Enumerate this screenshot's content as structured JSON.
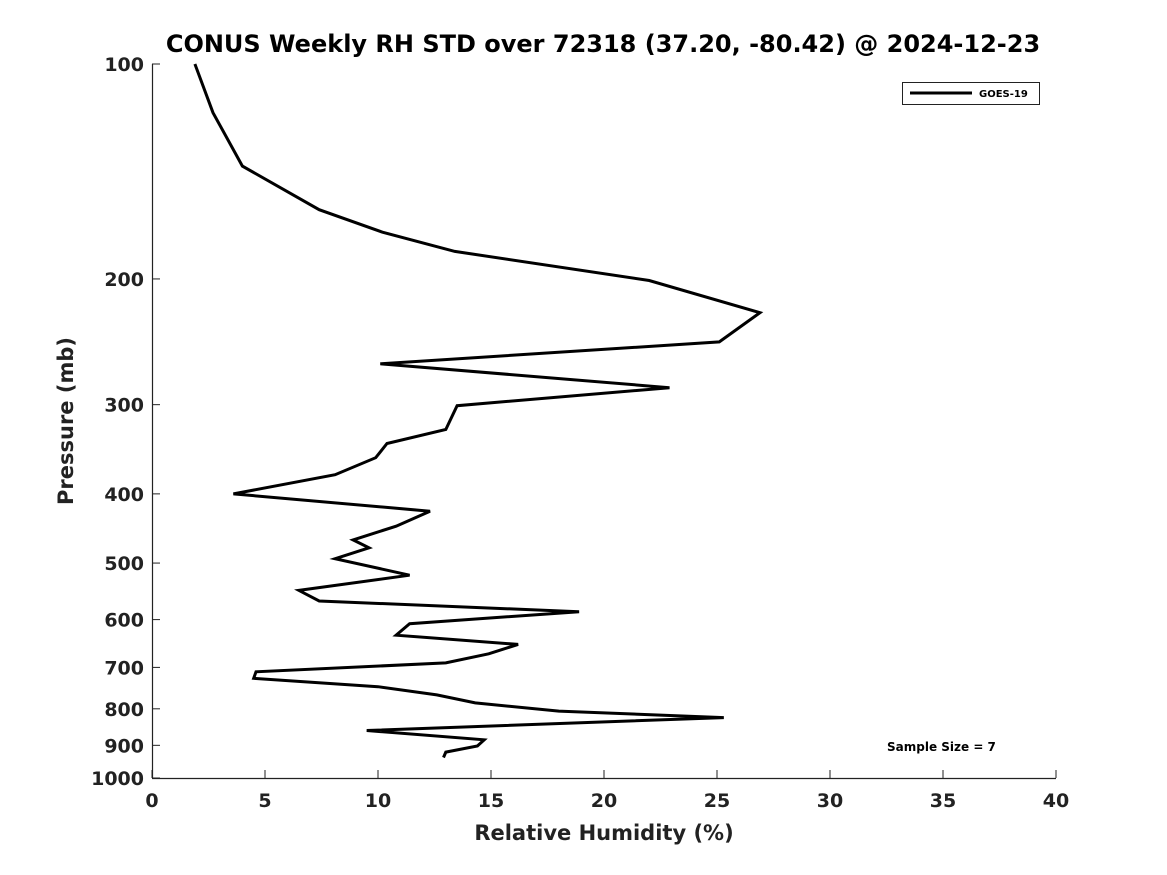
{
  "chart_data": {
    "type": "line",
    "title": "CONUS Weekly RH STD over 72318 (37.20, -80.42) @ 2024-12-23",
    "xlabel": "Relative Humidity (%)",
    "ylabel": "Pressure (mb)",
    "xlim": [
      0,
      40
    ],
    "ylim": [
      100,
      1000
    ],
    "yscale": "log",
    "reverse_y": true,
    "grid": false,
    "xticks": [
      "0",
      "5",
      "10",
      "15",
      "20",
      "25",
      "30",
      "35",
      "40"
    ],
    "yticks": [
      "100",
      "200",
      "300",
      "400",
      "500",
      "600",
      "700",
      "800",
      "900",
      "1000"
    ],
    "legend": {
      "position": "top-right",
      "entries": [
        "GOES-19"
      ]
    },
    "annotation": "Sample Size = 7",
    "series": [
      {
        "name": "GOES-19",
        "color": "#000000",
        "points": [
          [
            1.9,
            100
          ],
          [
            2.7,
            117
          ],
          [
            4.0,
            139
          ],
          [
            7.4,
            160
          ],
          [
            10.2,
            172
          ],
          [
            13.4,
            183
          ],
          [
            22.0,
            201
          ],
          [
            26.9,
            223
          ],
          [
            25.1,
            245
          ],
          [
            10.1,
            263
          ],
          [
            22.9,
            284
          ],
          [
            13.5,
            301
          ],
          [
            13.0,
            325
          ],
          [
            10.4,
            340
          ],
          [
            9.9,
            356
          ],
          [
            8.1,
            376
          ],
          [
            3.6,
            400
          ],
          [
            12.3,
            423
          ],
          [
            10.8,
            444
          ],
          [
            8.9,
            464
          ],
          [
            9.6,
            476
          ],
          [
            8.1,
            493
          ],
          [
            11.4,
            520
          ],
          [
            6.5,
            546
          ],
          [
            7.4,
            565
          ],
          [
            18.9,
            585
          ],
          [
            11.4,
            608
          ],
          [
            10.8,
            631
          ],
          [
            16.2,
            650
          ],
          [
            14.9,
            670
          ],
          [
            13.0,
            690
          ],
          [
            4.6,
            710
          ],
          [
            4.5,
            725
          ],
          [
            10.0,
            745
          ],
          [
            12.6,
            765
          ],
          [
            14.3,
            785
          ],
          [
            18.0,
            806
          ],
          [
            25.3,
            823
          ],
          [
            9.5,
            858
          ],
          [
            14.7,
            884
          ],
          [
            14.4,
            902
          ],
          [
            13.0,
            920
          ],
          [
            12.9,
            936
          ]
        ]
      }
    ]
  }
}
